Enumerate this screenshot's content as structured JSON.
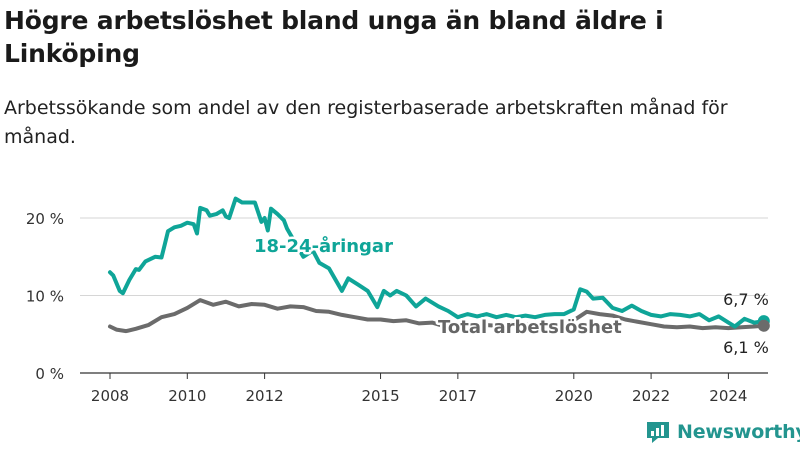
{
  "header": {
    "title": "Högre arbetslöshet bland unga än bland äldre i Linköping",
    "subtitle": "Arbetssökande som andel av den registerbaserade arbetskraften månad för månad."
  },
  "brand": {
    "name": "Newsworthy",
    "color": "#23958f"
  },
  "chart_data": {
    "type": "line",
    "x_type": "date",
    "x_ticks": [
      "2008",
      "2010",
      "2012",
      "2015",
      "2017",
      "2020",
      "2022",
      "2024"
    ],
    "y_ticks": [
      "0 %",
      "10 %",
      "20 %"
    ],
    "ylim": [
      0,
      23
    ],
    "grid": true,
    "series": [
      {
        "name": "18-24-åringar",
        "color": "#0fa598",
        "end_label": "6,7 %",
        "points": [
          [
            "2008-01",
            13.0
          ],
          [
            "2008-02",
            12.6
          ],
          [
            "2008-04",
            10.6
          ],
          [
            "2008-05",
            10.3
          ],
          [
            "2008-07",
            12.0
          ],
          [
            "2008-09",
            13.4
          ],
          [
            "2008-10",
            13.3
          ],
          [
            "2008-12",
            14.4
          ],
          [
            "2009-03",
            15.0
          ],
          [
            "2009-05",
            14.9
          ],
          [
            "2009-06",
            16.6
          ],
          [
            "2009-07",
            18.3
          ],
          [
            "2009-09",
            18.8
          ],
          [
            "2009-11",
            19.0
          ],
          [
            "2010-01",
            19.4
          ],
          [
            "2010-03",
            19.2
          ],
          [
            "2010-04",
            18.0
          ],
          [
            "2010-05",
            21.3
          ],
          [
            "2010-07",
            21.0
          ],
          [
            "2010-08",
            20.3
          ],
          [
            "2010-10",
            20.5
          ],
          [
            "2010-12",
            21.0
          ],
          [
            "2011-01",
            20.2
          ],
          [
            "2011-02",
            20.0
          ],
          [
            "2011-04",
            22.5
          ],
          [
            "2011-06",
            22.0
          ],
          [
            "2011-08",
            22.0
          ],
          [
            "2011-10",
            22.0
          ],
          [
            "2011-12",
            19.5
          ],
          [
            "2012-01",
            20.0
          ],
          [
            "2012-02",
            18.4
          ],
          [
            "2012-03",
            21.2
          ],
          [
            "2012-05",
            20.5
          ],
          [
            "2012-07",
            19.7
          ],
          [
            "2012-08",
            18.6
          ],
          [
            "2013-01",
            15.0
          ],
          [
            "2013-04",
            15.8
          ],
          [
            "2013-06",
            14.2
          ],
          [
            "2013-09",
            13.5
          ],
          [
            "2014-01",
            10.6
          ],
          [
            "2014-03",
            12.2
          ],
          [
            "2014-06",
            11.4
          ],
          [
            "2014-09",
            10.6
          ],
          [
            "2014-12",
            8.5
          ],
          [
            "2015-02",
            10.6
          ],
          [
            "2015-04",
            10.0
          ],
          [
            "2015-06",
            10.6
          ],
          [
            "2015-09",
            10.0
          ],
          [
            "2015-12",
            8.6
          ],
          [
            "2016-03",
            9.6
          ],
          [
            "2016-07",
            8.6
          ],
          [
            "2016-10",
            8.0
          ],
          [
            "2017-01",
            7.2
          ],
          [
            "2017-04",
            7.6
          ],
          [
            "2017-07",
            7.3
          ],
          [
            "2017-10",
            7.6
          ],
          [
            "2018-01",
            7.2
          ],
          [
            "2018-04",
            7.5
          ],
          [
            "2018-07",
            7.2
          ],
          [
            "2018-10",
            7.4
          ],
          [
            "2019-01",
            7.2
          ],
          [
            "2019-04",
            7.5
          ],
          [
            "2019-07",
            7.6
          ],
          [
            "2019-10",
            7.6
          ],
          [
            "2020-01",
            8.2
          ],
          [
            "2020-03",
            10.8
          ],
          [
            "2020-05",
            10.5
          ],
          [
            "2020-07",
            9.6
          ],
          [
            "2020-10",
            9.7
          ],
          [
            "2021-01",
            8.4
          ],
          [
            "2021-04",
            8.0
          ],
          [
            "2021-07",
            8.7
          ],
          [
            "2021-10",
            8.0
          ],
          [
            "2022-01",
            7.5
          ],
          [
            "2022-04",
            7.3
          ],
          [
            "2022-07",
            7.6
          ],
          [
            "2022-10",
            7.5
          ],
          [
            "2023-01",
            7.3
          ],
          [
            "2023-04",
            7.6
          ],
          [
            "2023-07",
            6.8
          ],
          [
            "2023-10",
            7.3
          ],
          [
            "2024-01",
            6.5
          ],
          [
            "2024-03",
            6.0
          ],
          [
            "2024-06",
            7.0
          ],
          [
            "2024-09",
            6.5
          ],
          [
            "2024-12",
            6.7
          ]
        ]
      },
      {
        "name": "Total arbetslöshet",
        "color": "#6b6b6b",
        "end_label": "6,1 %",
        "points": [
          [
            "2008-01",
            6.0
          ],
          [
            "2008-03",
            5.6
          ],
          [
            "2008-06",
            5.4
          ],
          [
            "2008-09",
            5.7
          ],
          [
            "2009-01",
            6.2
          ],
          [
            "2009-05",
            7.2
          ],
          [
            "2009-09",
            7.6
          ],
          [
            "2010-01",
            8.4
          ],
          [
            "2010-05",
            9.4
          ],
          [
            "2010-09",
            8.8
          ],
          [
            "2011-01",
            9.2
          ],
          [
            "2011-05",
            8.6
          ],
          [
            "2011-09",
            8.9
          ],
          [
            "2012-01",
            8.8
          ],
          [
            "2012-05",
            8.3
          ],
          [
            "2012-09",
            8.6
          ],
          [
            "2013-01",
            8.5
          ],
          [
            "2013-05",
            8.0
          ],
          [
            "2013-09",
            7.9
          ],
          [
            "2014-01",
            7.5
          ],
          [
            "2014-05",
            7.2
          ],
          [
            "2014-09",
            6.9
          ],
          [
            "2015-01",
            6.9
          ],
          [
            "2015-05",
            6.7
          ],
          [
            "2015-09",
            6.8
          ],
          [
            "2016-01",
            6.4
          ],
          [
            "2016-05",
            6.5
          ],
          [
            "2016-09",
            6.0
          ],
          [
            "2017-01",
            6.3
          ],
          [
            "2017-05",
            6.1
          ],
          [
            "2017-09",
            6.2
          ],
          [
            "2018-01",
            6.1
          ],
          [
            "2018-05",
            6.3
          ],
          [
            "2018-09",
            6.2
          ],
          [
            "2019-01",
            6.3
          ],
          [
            "2019-05",
            6.4
          ],
          [
            "2019-09",
            6.2
          ],
          [
            "2020-01",
            6.8
          ],
          [
            "2020-05",
            7.9
          ],
          [
            "2020-09",
            7.6
          ],
          [
            "2021-01",
            7.4
          ],
          [
            "2021-05",
            6.9
          ],
          [
            "2021-09",
            6.6
          ],
          [
            "2022-01",
            6.3
          ],
          [
            "2022-05",
            6.0
          ],
          [
            "2022-09",
            5.9
          ],
          [
            "2023-01",
            6.0
          ],
          [
            "2023-05",
            5.8
          ],
          [
            "2023-09",
            5.9
          ],
          [
            "2024-01",
            5.8
          ],
          [
            "2024-05",
            5.9
          ],
          [
            "2024-09",
            6.0
          ],
          [
            "2024-12",
            6.1
          ]
        ]
      }
    ]
  }
}
